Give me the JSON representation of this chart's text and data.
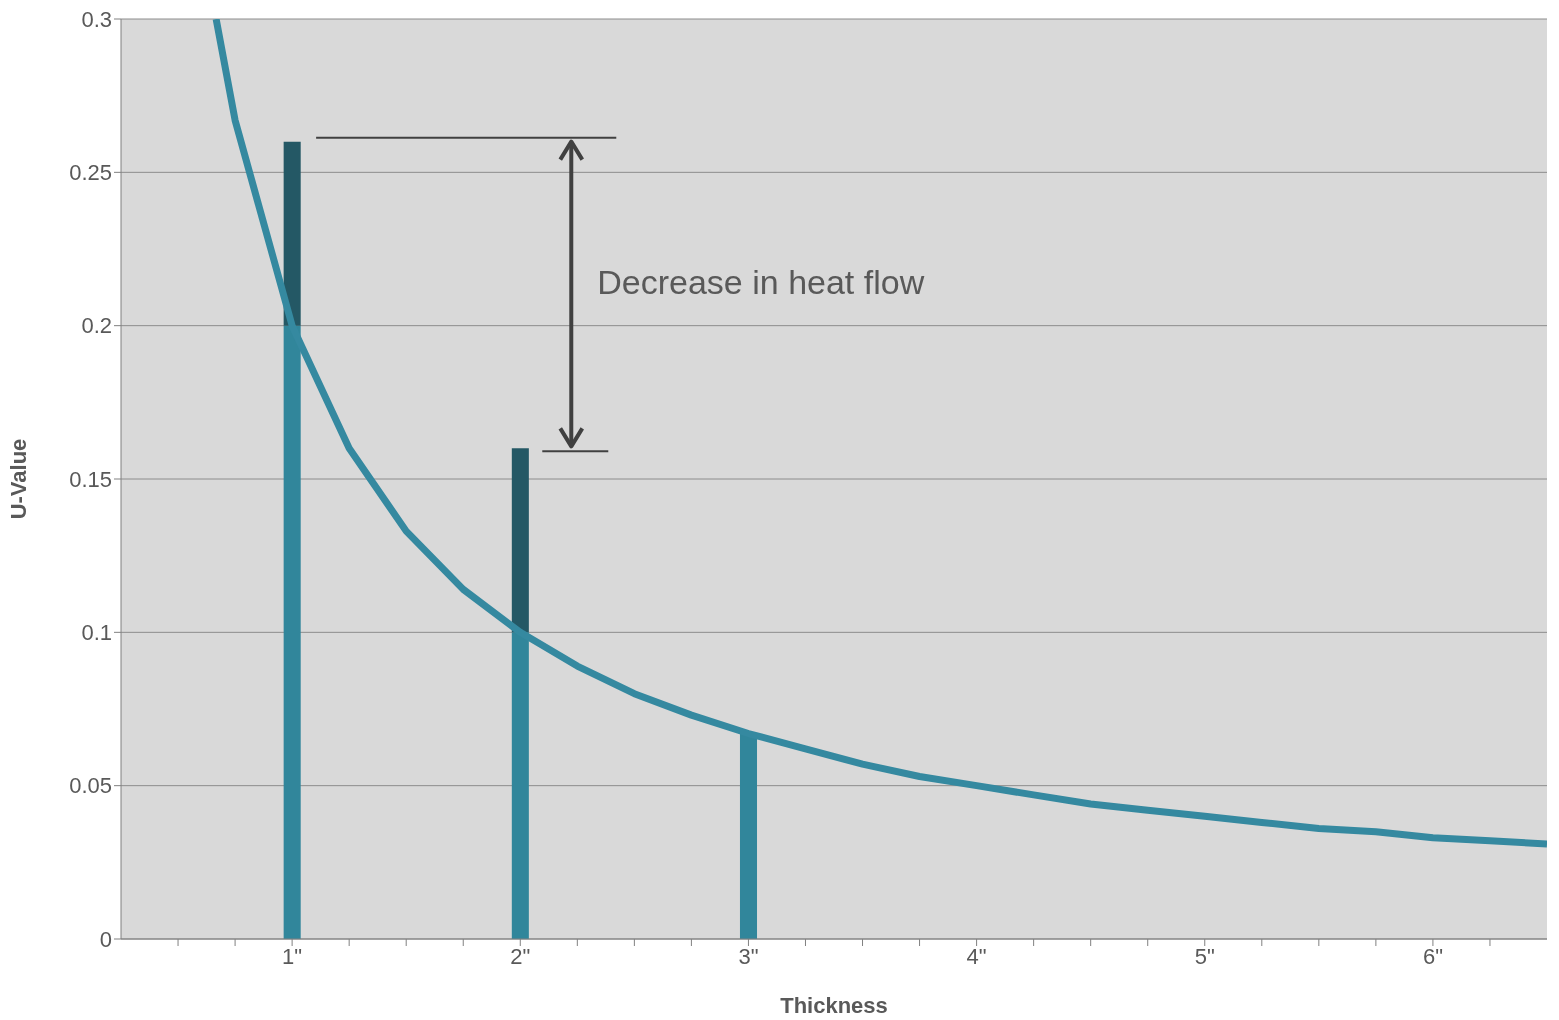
{
  "chart_data": {
    "type": "line",
    "xlabel": "Thickness",
    "ylabel": "U-Value",
    "xlim": [
      0.25,
      6.5
    ],
    "ylim": [
      0,
      0.3
    ],
    "xticks": [
      {
        "value": 0.5,
        "label": null
      },
      {
        "value": 0.75,
        "label": null
      },
      {
        "value": 1,
        "label": "1\""
      },
      {
        "value": 1.25,
        "label": null
      },
      {
        "value": 1.5,
        "label": null
      },
      {
        "value": 1.75,
        "label": null
      },
      {
        "value": 2,
        "label": "2\""
      },
      {
        "value": 2.25,
        "label": null
      },
      {
        "value": 2.5,
        "label": null
      },
      {
        "value": 2.75,
        "label": null
      },
      {
        "value": 3,
        "label": "3\""
      },
      {
        "value": 3.25,
        "label": null
      },
      {
        "value": 3.5,
        "label": null
      },
      {
        "value": 3.75,
        "label": null
      },
      {
        "value": 4,
        "label": "4\""
      },
      {
        "value": 4.25,
        "label": null
      },
      {
        "value": 4.5,
        "label": null
      },
      {
        "value": 4.75,
        "label": null
      },
      {
        "value": 5,
        "label": "5\""
      },
      {
        "value": 5.25,
        "label": null
      },
      {
        "value": 5.5,
        "label": null
      },
      {
        "value": 5.75,
        "label": null
      },
      {
        "value": 6,
        "label": "6\""
      },
      {
        "value": 6.25,
        "label": null
      }
    ],
    "yticks": [
      0,
      0.05,
      0.1,
      0.15,
      0.2,
      0.25,
      0.3
    ],
    "grid": "y",
    "legend": false,
    "marker": "none",
    "line_style": "solid",
    "stacked": true,
    "series": [
      {
        "type": "bar",
        "x": [
          1,
          2,
          3
        ],
        "color": "#31869b",
        "values": [
          0.2,
          0.1,
          0.067
        ]
      },
      {
        "type": "bar",
        "x": [
          1,
          2
        ],
        "color": "#245865",
        "values": [
          0.06,
          0.06
        ]
      },
      {
        "color": "#3589a0",
        "x": [
          0.667,
          0.75,
          1,
          1.25,
          1.5,
          1.75,
          2,
          2.25,
          2.5,
          2.75,
          3,
          3.25,
          3.5,
          3.75,
          4,
          4.25,
          4.5,
          4.75,
          5,
          5.25,
          5.5,
          5.75,
          6,
          6.25,
          6.5
        ],
        "values": [
          0.3,
          0.267,
          0.2,
          0.16,
          0.133,
          0.114,
          0.1,
          0.089,
          0.08,
          0.073,
          0.067,
          0.062,
          0.057,
          0.053,
          0.05,
          0.047,
          0.044,
          0.042,
          0.04,
          0.038,
          0.036,
          0.035,
          0.033,
          0.032,
          0.031
        ]
      }
    ],
    "annotations": [
      "Decrease in heat flow"
    ]
  }
}
